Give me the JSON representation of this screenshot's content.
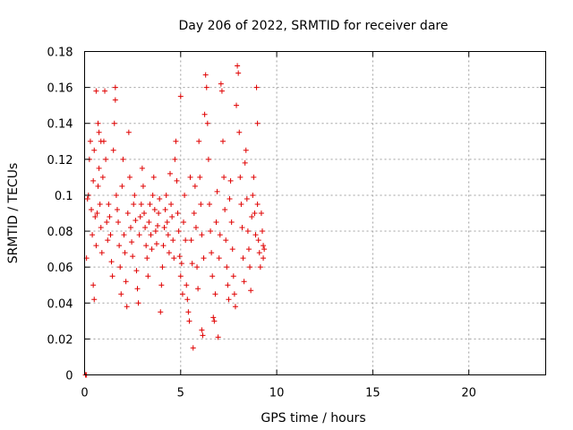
{
  "chart_data": {
    "type": "scatter",
    "title": "Day 206 of 2022, SRMTID for receiver dare",
    "xlabel": "GPS time / hours",
    "ylabel": "SRMTID / TECUs",
    "xlim": [
      0,
      24
    ],
    "ylim": [
      0,
      0.18
    ],
    "x_ticks": [
      0,
      5,
      10,
      15,
      20
    ],
    "x_tick_labels": [
      "0",
      "5",
      "10",
      "15",
      "20"
    ],
    "y_ticks": [
      0,
      0.02,
      0.04,
      0.06,
      0.08,
      0.1,
      0.12,
      0.14,
      0.16,
      0.18
    ],
    "y_tick_labels": [
      "0",
      "0.02",
      "0.04",
      "0.06",
      "0.08",
      "0.1",
      "0.12",
      "0.14",
      "0.16",
      "0.18"
    ],
    "grid": true,
    "marker": "+",
    "color": "#e00000",
    "series": [
      {
        "points": [
          [
            0.05,
            0.0
          ],
          [
            0.1,
            0.0
          ],
          [
            0.1,
            0.065
          ],
          [
            0.15,
            0.098
          ],
          [
            0.2,
            0.1
          ],
          [
            0.25,
            0.12
          ],
          [
            0.3,
            0.13
          ],
          [
            0.35,
            0.092
          ],
          [
            0.4,
            0.078
          ],
          [
            0.45,
            0.108
          ],
          [
            0.5,
            0.125
          ],
          [
            0.55,
            0.088
          ],
          [
            0.6,
            0.072
          ],
          [
            0.65,
            0.09
          ],
          [
            0.7,
            0.105
          ],
          [
            0.75,
            0.115
          ],
          [
            0.8,
            0.095
          ],
          [
            0.85,
            0.082
          ],
          [
            0.9,
            0.068
          ],
          [
            0.95,
            0.11
          ],
          [
            1.0,
            0.13
          ],
          [
            1.05,
            0.158
          ],
          [
            1.1,
            0.12
          ],
          [
            1.15,
            0.085
          ],
          [
            1.2,
            0.075
          ],
          [
            0.45,
            0.05
          ],
          [
            0.5,
            0.042
          ],
          [
            0.6,
            0.158
          ],
          [
            0.7,
            0.14
          ],
          [
            0.75,
            0.135
          ],
          [
            0.85,
            0.13
          ],
          [
            1.25,
            0.095
          ],
          [
            1.3,
            0.088
          ],
          [
            1.35,
            0.078
          ],
          [
            1.4,
            0.063
          ],
          [
            1.45,
            0.055
          ],
          [
            1.5,
            0.125
          ],
          [
            1.55,
            0.14
          ],
          [
            1.6,
            0.16
          ],
          [
            1.6,
            0.153
          ],
          [
            1.65,
            0.1
          ],
          [
            1.7,
            0.092
          ],
          [
            1.75,
            0.085
          ],
          [
            1.8,
            0.072
          ],
          [
            1.85,
            0.06
          ],
          [
            1.9,
            0.045
          ],
          [
            1.95,
            0.105
          ],
          [
            2.0,
            0.12
          ],
          [
            2.05,
            0.078
          ],
          [
            2.1,
            0.068
          ],
          [
            2.15,
            0.052
          ],
          [
            2.2,
            0.038
          ],
          [
            2.25,
            0.09
          ],
          [
            2.3,
            0.135
          ],
          [
            2.35,
            0.11
          ],
          [
            2.4,
            0.082
          ],
          [
            2.45,
            0.074
          ],
          [
            2.5,
            0.066
          ],
          [
            2.55,
            0.095
          ],
          [
            2.6,
            0.1
          ],
          [
            2.65,
            0.086
          ],
          [
            2.7,
            0.058
          ],
          [
            2.75,
            0.048
          ],
          [
            2.8,
            0.04
          ],
          [
            2.85,
            0.078
          ],
          [
            2.9,
            0.088
          ],
          [
            2.95,
            0.095
          ],
          [
            3.0,
            0.115
          ],
          [
            3.05,
            0.105
          ],
          [
            3.1,
            0.09
          ],
          [
            3.15,
            0.082
          ],
          [
            3.2,
            0.072
          ],
          [
            3.25,
            0.065
          ],
          [
            3.3,
            0.055
          ],
          [
            3.35,
            0.085
          ],
          [
            3.4,
            0.095
          ],
          [
            3.45,
            0.078
          ],
          [
            3.5,
            0.07
          ],
          [
            3.55,
            0.1
          ],
          [
            3.6,
            0.11
          ],
          [
            3.65,
            0.092
          ],
          [
            3.7,
            0.08
          ],
          [
            3.75,
            0.073
          ],
          [
            3.8,
            0.083
          ],
          [
            3.85,
            0.09
          ],
          [
            3.9,
            0.098
          ],
          [
            3.95,
            0.035
          ],
          [
            4.0,
            0.05
          ],
          [
            4.05,
            0.06
          ],
          [
            4.1,
            0.072
          ],
          [
            4.15,
            0.082
          ],
          [
            4.2,
            0.092
          ],
          [
            4.25,
            0.1
          ],
          [
            4.3,
            0.085
          ],
          [
            4.35,
            0.078
          ],
          [
            4.4,
            0.068
          ],
          [
            4.45,
            0.112
          ],
          [
            4.5,
            0.095
          ],
          [
            4.55,
            0.088
          ],
          [
            4.6,
            0.075
          ],
          [
            4.65,
            0.065
          ],
          [
            4.7,
            0.12
          ],
          [
            4.75,
            0.13
          ],
          [
            4.8,
            0.108
          ],
          [
            4.85,
            0.09
          ],
          [
            4.9,
            0.08
          ],
          [
            4.95,
            0.066
          ],
          [
            5.0,
            0.155
          ],
          [
            5.0,
            0.055
          ],
          [
            5.05,
            0.062
          ],
          [
            5.1,
            0.045
          ],
          [
            5.15,
            0.085
          ],
          [
            5.2,
            0.1
          ],
          [
            5.25,
            0.075
          ],
          [
            5.3,
            0.05
          ],
          [
            5.35,
            0.042
          ],
          [
            5.4,
            0.035
          ],
          [
            5.45,
            0.03
          ],
          [
            5.5,
            0.11
          ],
          [
            5.55,
            0.075
          ],
          [
            5.6,
            0.062
          ],
          [
            5.65,
            0.015
          ],
          [
            5.7,
            0.09
          ],
          [
            5.75,
            0.105
          ],
          [
            5.8,
            0.082
          ],
          [
            5.85,
            0.06
          ],
          [
            5.9,
            0.048
          ],
          [
            5.95,
            0.13
          ],
          [
            6.0,
            0.11
          ],
          [
            6.05,
            0.095
          ],
          [
            6.1,
            0.078
          ],
          [
            6.1,
            0.025
          ],
          [
            6.15,
            0.022
          ],
          [
            6.2,
            0.065
          ],
          [
            6.25,
            0.145
          ],
          [
            6.3,
            0.167
          ],
          [
            6.35,
            0.16
          ],
          [
            6.4,
            0.14
          ],
          [
            6.45,
            0.12
          ],
          [
            6.5,
            0.095
          ],
          [
            6.55,
            0.08
          ],
          [
            6.6,
            0.068
          ],
          [
            6.65,
            0.055
          ],
          [
            6.7,
            0.032
          ],
          [
            6.75,
            0.03
          ],
          [
            6.8,
            0.045
          ],
          [
            6.85,
            0.085
          ],
          [
            6.9,
            0.102
          ],
          [
            6.95,
            0.021
          ],
          [
            7.0,
            0.065
          ],
          [
            7.05,
            0.078
          ],
          [
            7.1,
            0.162
          ],
          [
            7.15,
            0.158
          ],
          [
            7.2,
            0.13
          ],
          [
            7.25,
            0.11
          ],
          [
            7.3,
            0.092
          ],
          [
            7.35,
            0.075
          ],
          [
            7.4,
            0.06
          ],
          [
            7.45,
            0.05
          ],
          [
            7.5,
            0.042
          ],
          [
            7.55,
            0.098
          ],
          [
            7.6,
            0.108
          ],
          [
            7.65,
            0.085
          ],
          [
            7.7,
            0.07
          ],
          [
            7.75,
            0.055
          ],
          [
            7.8,
            0.045
          ],
          [
            7.85,
            0.038
          ],
          [
            7.9,
            0.15
          ],
          [
            7.95,
            0.172
          ],
          [
            8.0,
            0.168
          ],
          [
            8.05,
            0.135
          ],
          [
            8.1,
            0.11
          ],
          [
            8.15,
            0.095
          ],
          [
            8.2,
            0.082
          ],
          [
            8.25,
            0.065
          ],
          [
            8.3,
            0.052
          ],
          [
            8.35,
            0.118
          ],
          [
            8.4,
            0.125
          ],
          [
            8.45,
            0.098
          ],
          [
            8.5,
            0.08
          ],
          [
            8.55,
            0.07
          ],
          [
            8.6,
            0.06
          ],
          [
            8.65,
            0.047
          ],
          [
            8.7,
            0.088
          ],
          [
            8.75,
            0.1
          ],
          [
            8.8,
            0.11
          ],
          [
            8.85,
            0.09
          ],
          [
            8.9,
            0.078
          ],
          [
            8.95,
            0.16
          ],
          [
            9.0,
            0.14
          ],
          [
            9.0,
            0.095
          ],
          [
            9.05,
            0.075
          ],
          [
            9.1,
            0.068
          ],
          [
            9.15,
            0.06
          ],
          [
            9.2,
            0.09
          ],
          [
            9.25,
            0.08
          ],
          [
            9.3,
            0.072
          ],
          [
            9.3,
            0.065
          ],
          [
            9.35,
            0.07
          ]
        ]
      }
    ]
  }
}
